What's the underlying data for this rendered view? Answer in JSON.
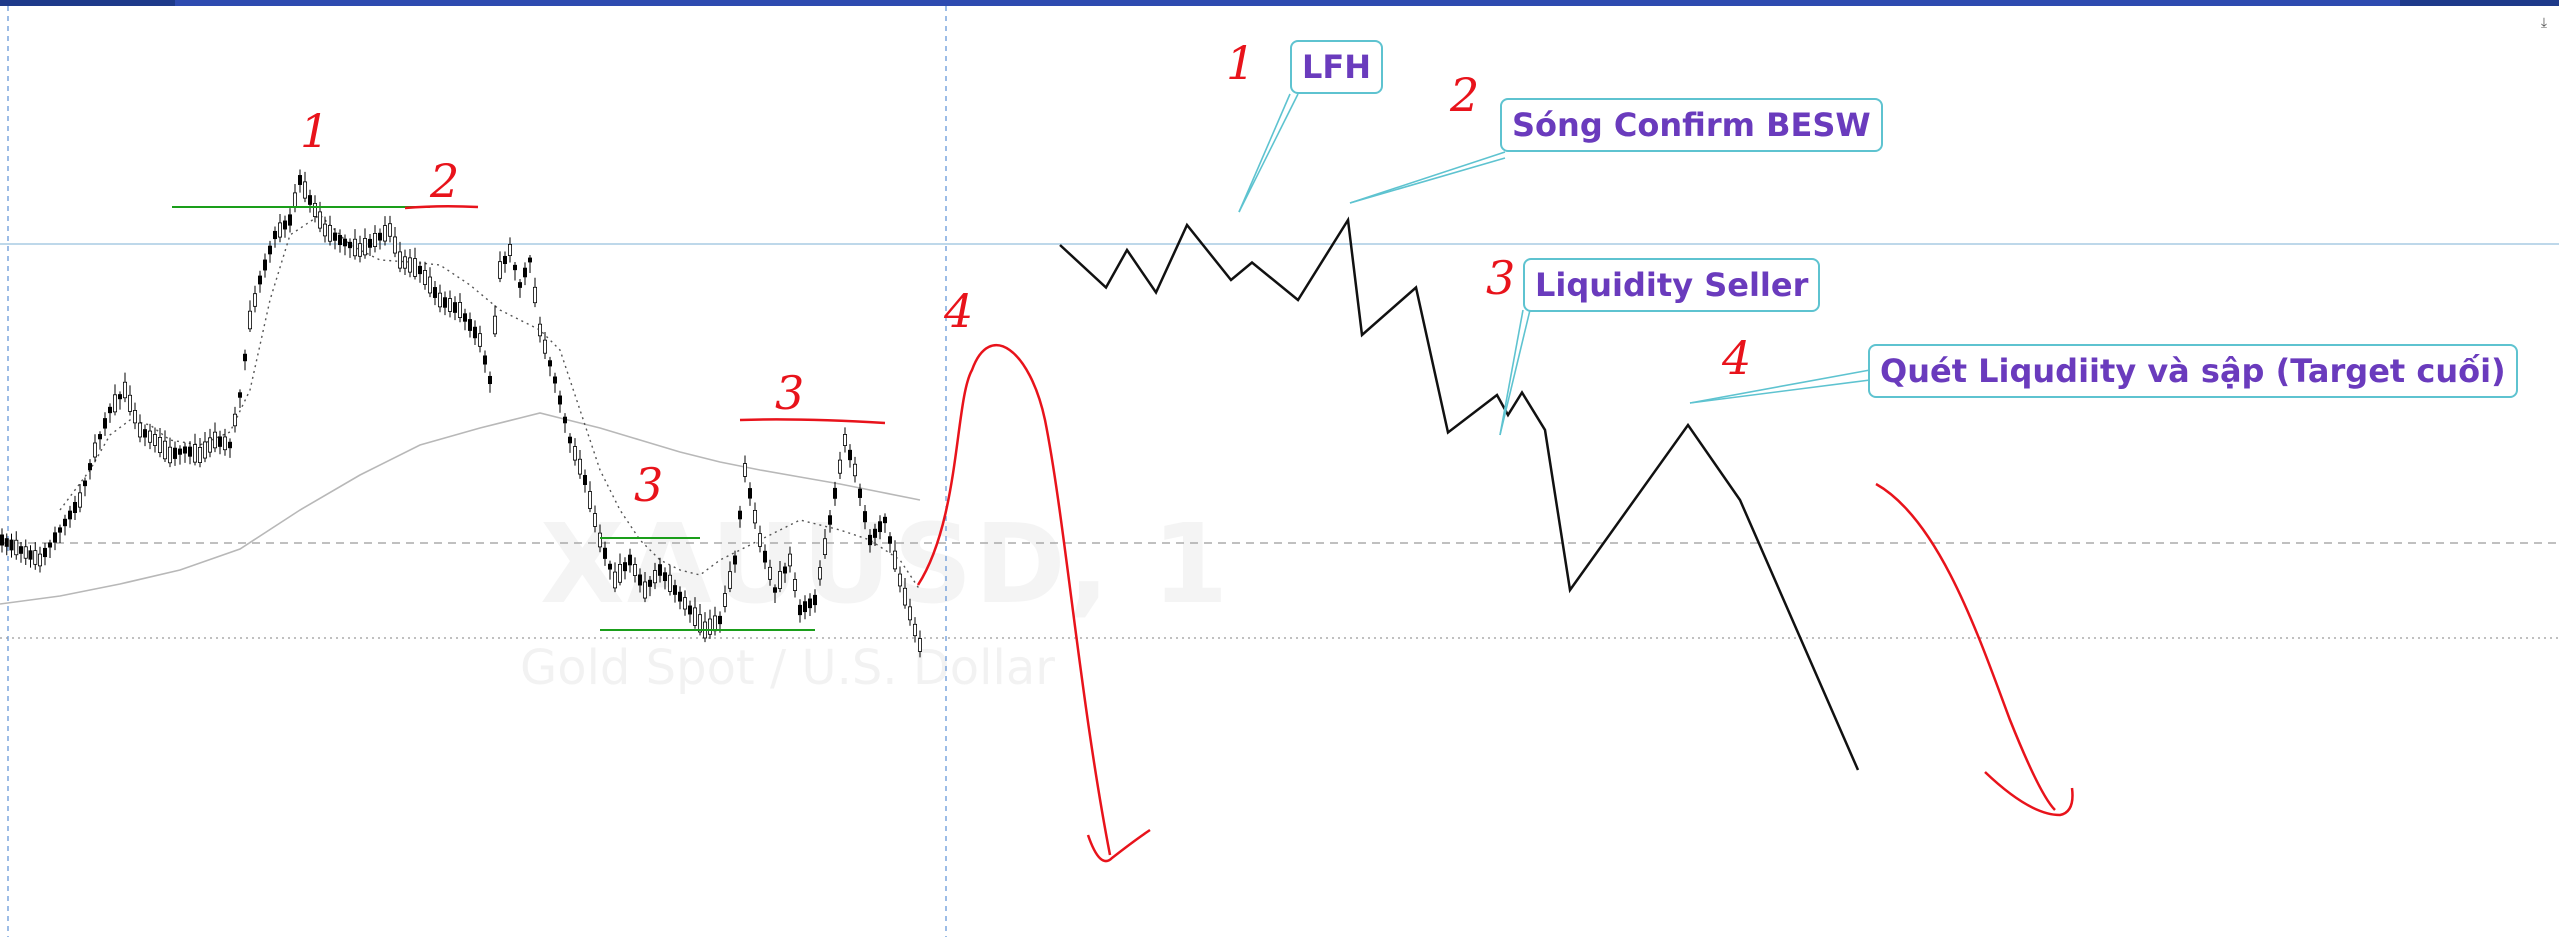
{
  "chart_data": {
    "type": "line",
    "title": "",
    "symbol_watermark": "XAUUSD, 1",
    "description_watermark": "Gold Spot / U.S. Dollar",
    "structure_labels": {
      "left": [
        "1",
        "2",
        "3",
        "3",
        "4"
      ],
      "right": [
        "1",
        "2",
        "3",
        "4"
      ]
    },
    "callouts": [
      {
        "id": "lfh",
        "text": "LFH"
      },
      {
        "id": "besw",
        "text": "Sóng Confirm BESW"
      },
      {
        "id": "liq-seller",
        "text": "Liquidity Seller"
      },
      {
        "id": "target",
        "text": "Quét Liqudiity và sập (Target cuối)"
      }
    ],
    "projected_path": {
      "x": [
        0,
        1,
        2,
        3,
        4,
        5,
        6,
        7,
        8,
        9,
        10,
        11,
        12,
        13,
        14,
        15,
        16,
        17,
        18,
        19
      ],
      "y": [
        38,
        55,
        40,
        57,
        30,
        52,
        45,
        60,
        28,
        74,
        55,
        113,
        98,
        106,
        97,
        112,
        176,
        110,
        140,
        248
      ]
    },
    "colors": {
      "up_candle": "#ffffff",
      "down_candle": "#000000",
      "structure_line": "#1a9e1a",
      "annotation": "#e8131b",
      "callout_border": "#5ec3d0",
      "callout_text": "#6a3bbd",
      "projection": "#111111",
      "ma_slow": "#b8b8b8"
    },
    "header": {
      "corner_icon": "arrow-down-icon",
      "corner_glyph": "⤓"
    }
  }
}
